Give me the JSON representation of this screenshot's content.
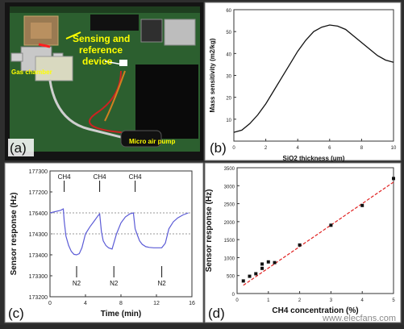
{
  "panels": {
    "a": {
      "label": "(a)",
      "annotations": [
        "Sensing and",
        "reference",
        "device",
        "Gas chamber",
        "Micro air pump"
      ]
    },
    "b": {
      "label": "(b)"
    },
    "c": {
      "label": "(c)"
    },
    "d": {
      "label": "(d)"
    }
  },
  "watermark": "www.elecfans.com",
  "colors": {
    "annotation_yellow": "#ffff00",
    "line_blue": "#5b5bd6",
    "fit_red": "#e02020"
  },
  "chart_data": [
    {
      "panel": "b",
      "type": "line",
      "xlabel": "SiO2 thickness (um)",
      "ylabel": "Mass sensitivity (m2/kg)",
      "xlim": [
        0,
        10
      ],
      "ylim": [
        0,
        60
      ],
      "xticks": [
        "0",
        "2",
        "4",
        "6",
        "8",
        "10"
      ],
      "yticks": [
        "0",
        "10",
        "20",
        "30",
        "40",
        "50",
        "60"
      ],
      "x": [
        0,
        0.5,
        1,
        1.5,
        2,
        2.5,
        3,
        3.5,
        4,
        4.5,
        5,
        5.5,
        6,
        6.5,
        7,
        7.5,
        8,
        8.5,
        9,
        9.5,
        10
      ],
      "y": [
        4,
        5,
        8,
        12,
        17,
        23,
        29,
        35,
        41,
        46,
        50,
        52,
        53,
        52.5,
        51,
        48,
        45,
        42,
        39,
        37,
        36
      ]
    },
    {
      "panel": "c",
      "type": "line",
      "xlabel": "Time (min)",
      "ylabel": "Sensor response (Hz)",
      "xlim": [
        0,
        16
      ],
      "ylim": [
        173200,
        177300
      ],
      "xticks": [
        "0",
        "4",
        "8",
        "12",
        "16"
      ],
      "yticks": [
        "173200",
        "173300",
        "173400",
        "174300",
        "176400",
        "177200",
        "177300"
      ],
      "x": [
        0,
        1.2,
        1.5,
        1.6,
        1.8,
        2.1,
        2.4,
        2.7,
        3.0,
        3.3,
        3.6,
        4.0,
        4.5,
        5.0,
        5.4,
        5.6,
        5.8,
        6.0,
        6.3,
        6.6,
        7.0,
        7.5,
        8.0,
        8.5,
        9.0,
        9.4,
        9.6,
        9.8,
        10.1,
        10.4,
        10.8,
        11.2,
        11.7,
        12.2,
        12.6,
        13.0,
        13.4,
        13.9,
        14.4,
        15.0,
        15.6
      ],
      "y": [
        176400,
        176500,
        176550,
        175600,
        174200,
        173800,
        173550,
        173420,
        173400,
        173450,
        173700,
        174300,
        175000,
        175600,
        176100,
        176300,
        174500,
        174000,
        173800,
        173700,
        173650,
        174300,
        175400,
        176000,
        176300,
        176400,
        174800,
        174300,
        174000,
        173850,
        173750,
        173720,
        173700,
        173700,
        173700,
        173900,
        174800,
        175500,
        175900,
        176200,
        176400
      ],
      "annotations": [
        "CH4",
        "CH4",
        "CH4",
        "N2",
        "N2",
        "N2"
      ]
    },
    {
      "panel": "d",
      "type": "scatter",
      "xlabel": "CH4 concentration (%)",
      "ylabel": "Sensor response (Hz)",
      "xlim": [
        0,
        5
      ],
      "ylim": [
        0,
        3500
      ],
      "xticks": [
        "0",
        "1",
        "2",
        "3",
        "4",
        "5"
      ],
      "yticks": [
        "0",
        "500",
        "1000",
        "1500",
        "2000",
        "2500",
        "3000",
        "3500"
      ],
      "x": [
        0.2,
        0.4,
        0.6,
        0.8,
        0.8,
        1.0,
        1.2,
        2.0,
        3.0,
        4.0,
        5.0
      ],
      "y": [
        350,
        480,
        550,
        700,
        820,
        880,
        860,
        1350,
        1900,
        2450,
        3200
      ],
      "fit_line": {
        "x": [
          0.2,
          5
        ],
        "y": [
          230,
          3100
        ]
      }
    }
  ]
}
